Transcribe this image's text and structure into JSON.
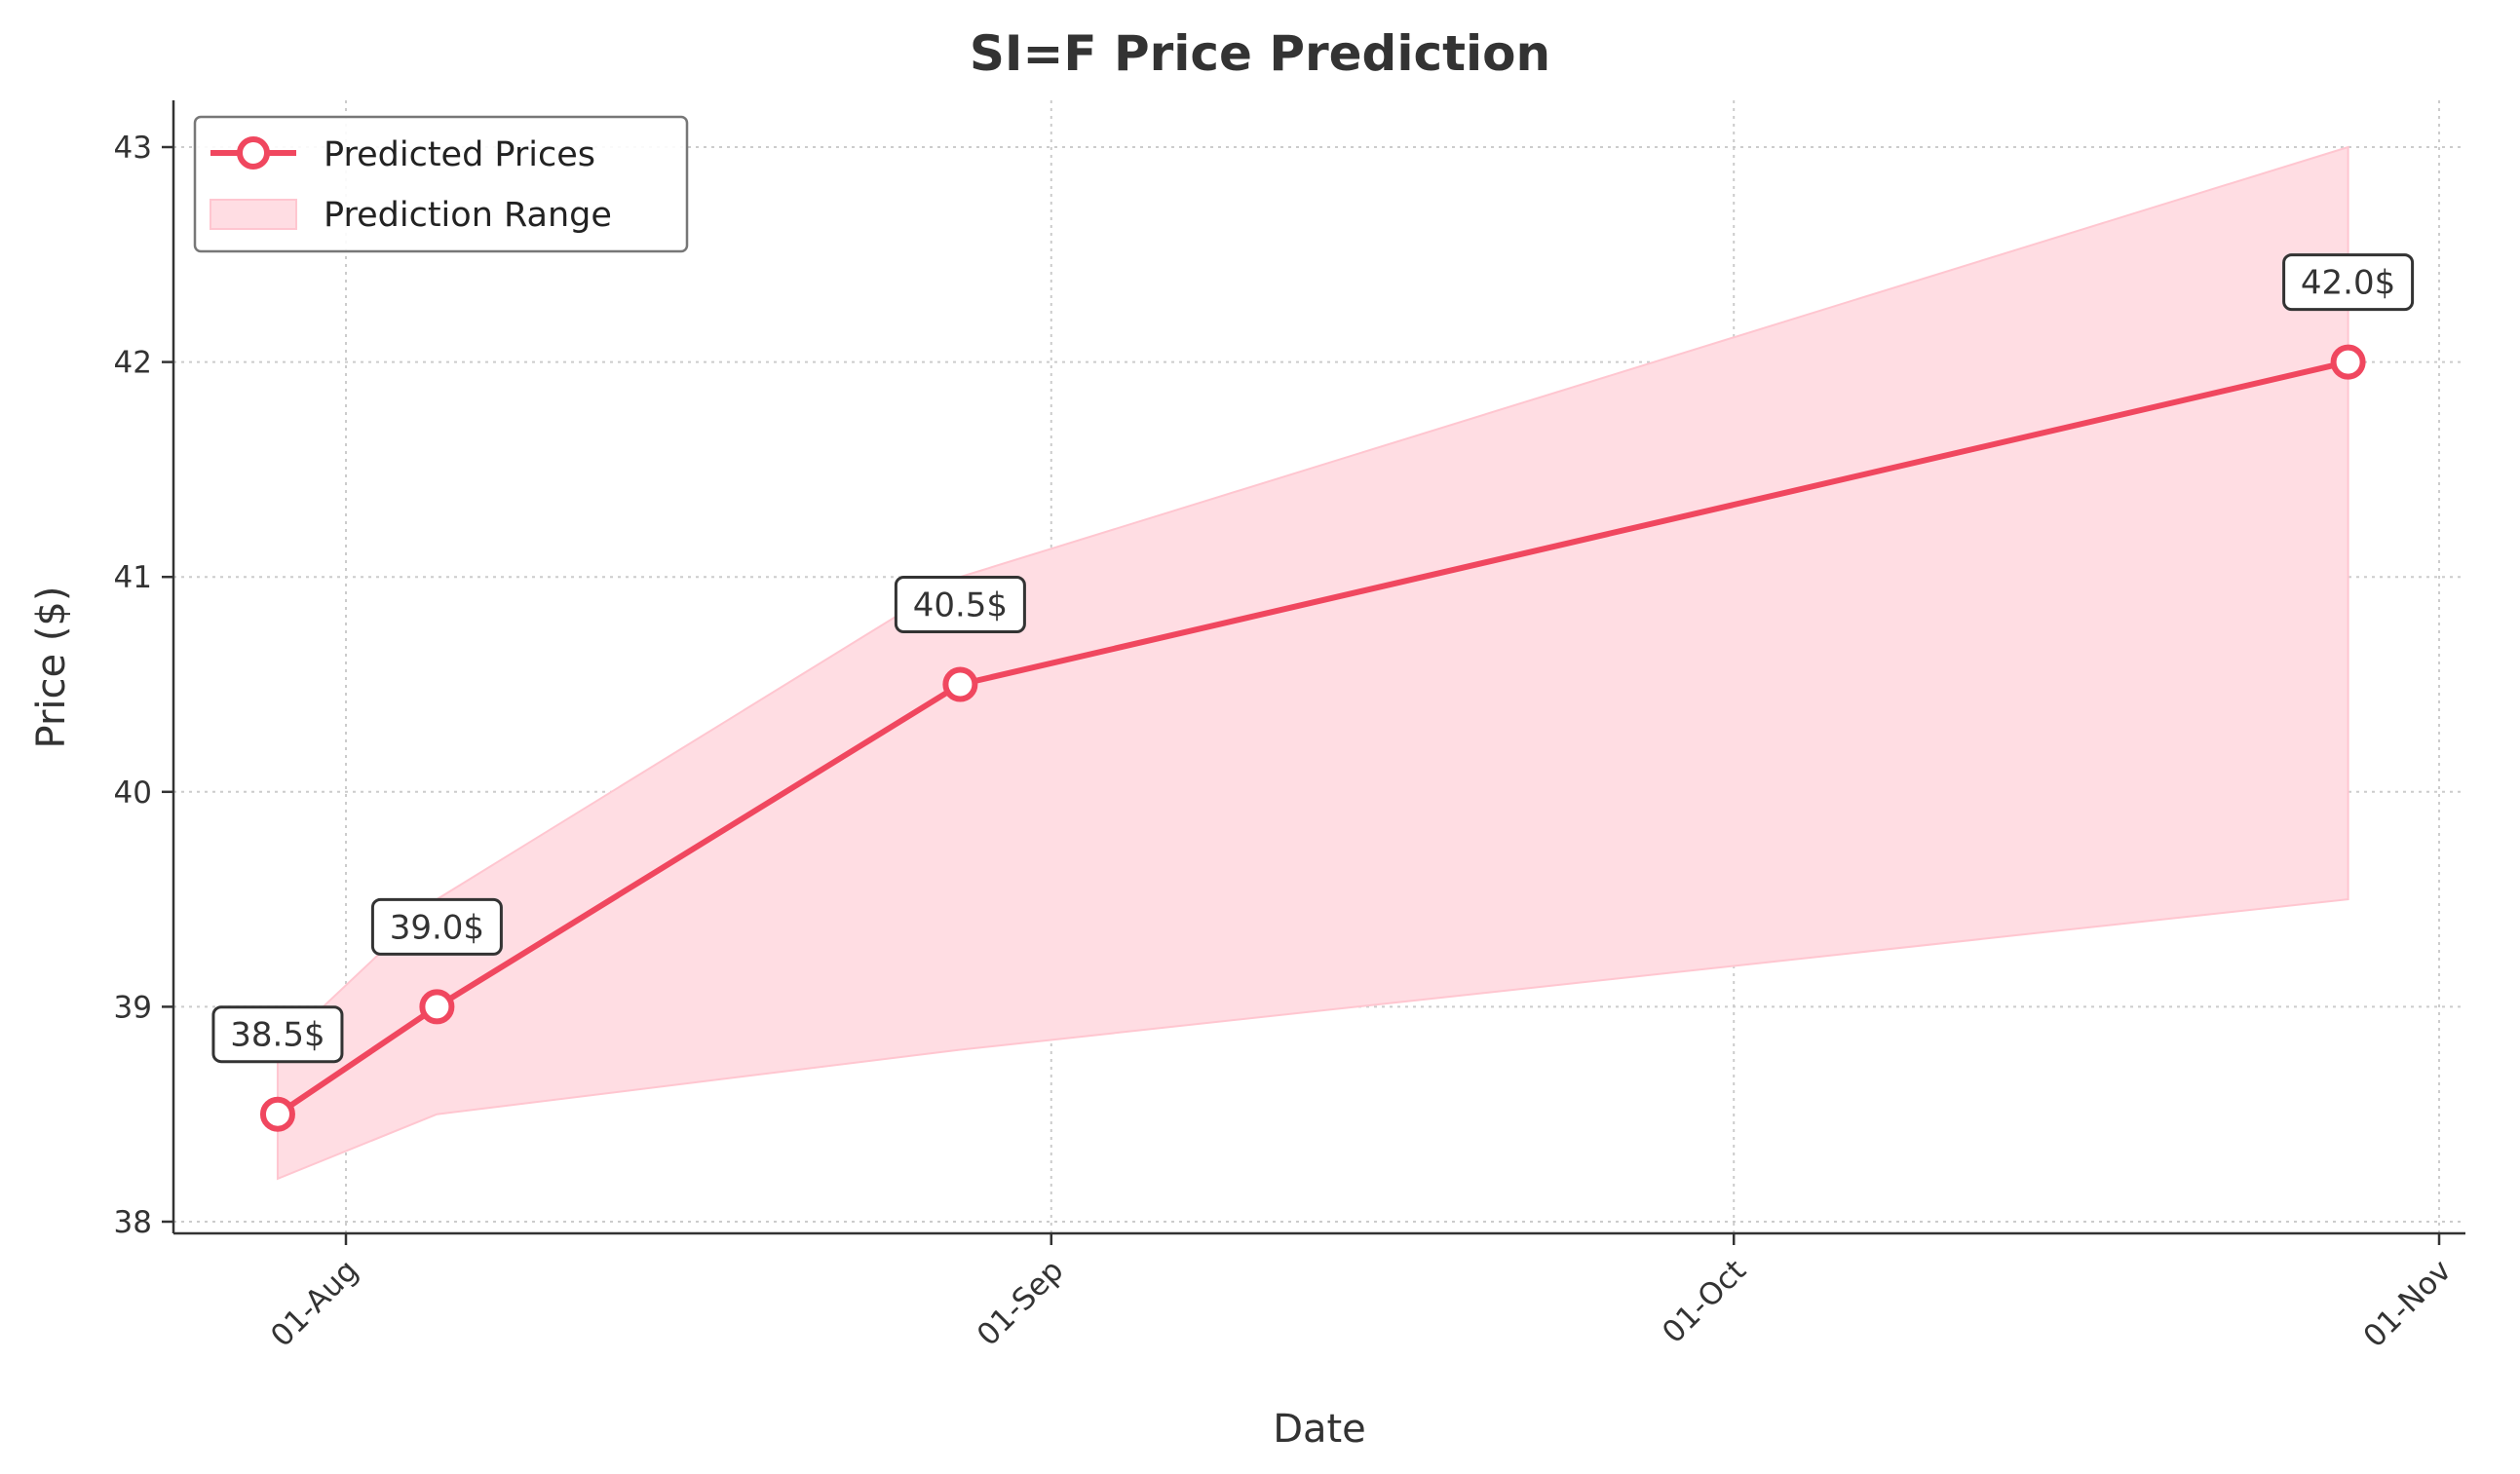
{
  "chart_data": {
    "type": "line",
    "title": "SI=F Price Prediction",
    "xlabel": "Date",
    "ylabel": "Price ($)",
    "x": [
      "2024-07-29",
      "2024-08-05",
      "2024-08-28",
      "2024-10-28"
    ],
    "series": [
      {
        "name": "Predicted Prices",
        "values": [
          38.5,
          39.0,
          40.5,
          42.0
        ],
        "labels": [
          "38.5$",
          "39.0$",
          "40.5$",
          "42.0$"
        ],
        "color": "#f0475f"
      }
    ],
    "range": {
      "name": "Prediction Range",
      "lower": [
        38.2,
        38.5,
        38.8,
        39.5
      ],
      "upper": [
        38.8,
        39.5,
        41.0,
        43.0
      ],
      "color": "#ffdde3"
    },
    "xticks": [
      {
        "date": "2024-08-01",
        "label": "01-Aug"
      },
      {
        "date": "2024-09-01",
        "label": "01-Sep"
      },
      {
        "date": "2024-10-01",
        "label": "01-Oct"
      },
      {
        "date": "2024-11-01",
        "label": "01-Nov"
      }
    ],
    "yticks": [
      38,
      39,
      40,
      41,
      42,
      43
    ],
    "xlim": [
      "2024-07-24",
      "2024-11-01"
    ],
    "ylim": [
      38.0,
      43.2
    ],
    "grid": true,
    "legend_position": "top-left"
  }
}
